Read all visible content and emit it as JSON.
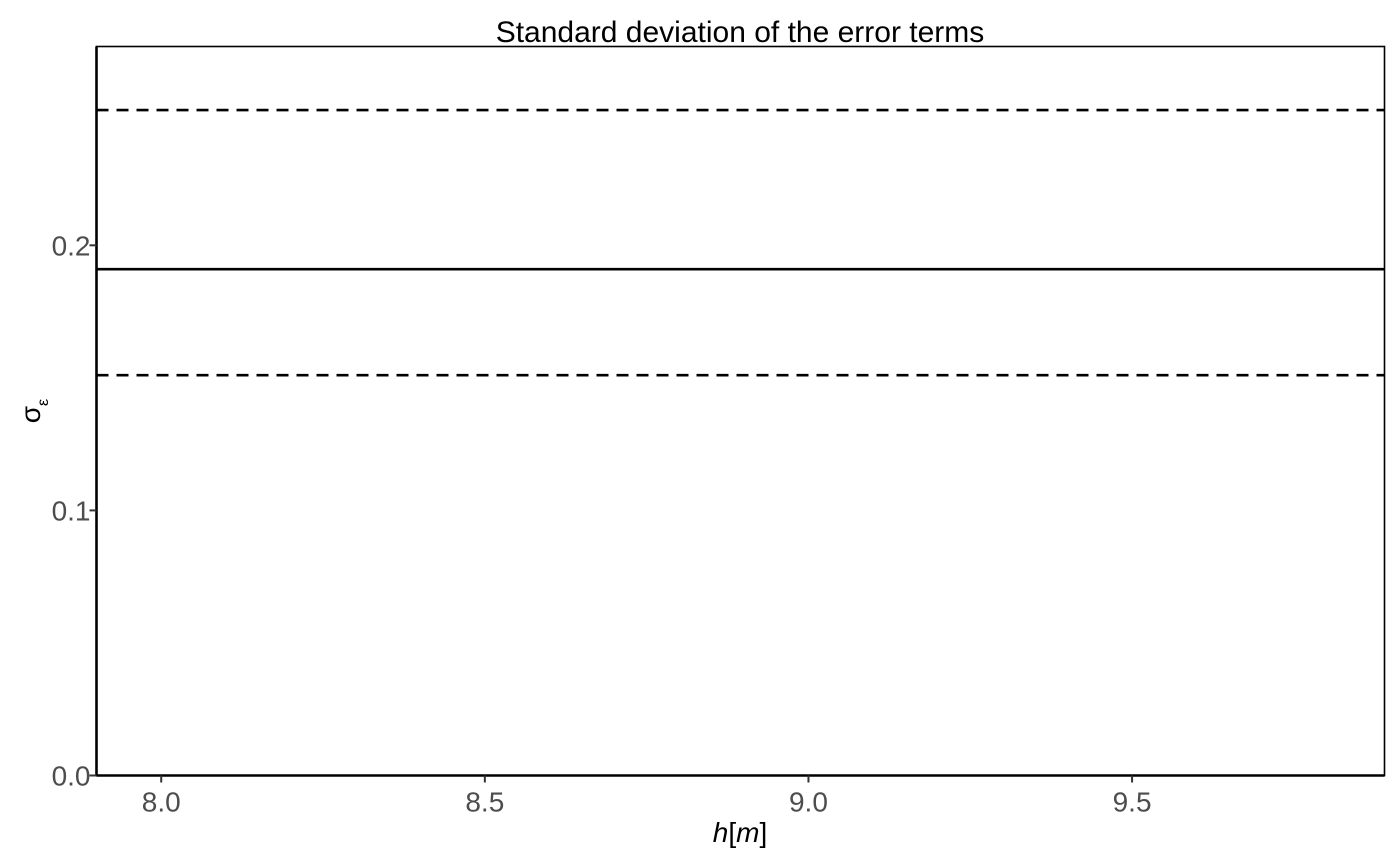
{
  "chart_data": {
    "type": "line",
    "title": "Standard deviation of the error terms",
    "xlabel": {
      "var": "h",
      "unit": "m"
    },
    "ylabel": {
      "symbol": "σ",
      "subscript": "ε"
    },
    "xlim": [
      7.9,
      9.89
    ],
    "ylim": [
      0.0,
      0.275
    ],
    "x_ticks": [
      8.0,
      8.5,
      9.0,
      9.5
    ],
    "x_tick_labels": [
      "8.0",
      "8.5",
      "9.0",
      "9.5"
    ],
    "y_ticks": [
      0.0,
      0.1,
      0.2
    ],
    "y_tick_labels": [
      "0.0",
      "0.1",
      "0.2"
    ],
    "grid": false,
    "series": [
      {
        "style": "dashed",
        "x": [
          7.9,
          9.89
        ],
        "values": [
          0.251,
          0.251
        ]
      },
      {
        "style": "solid",
        "x": [
          7.9,
          9.89
        ],
        "values": [
          0.191,
          0.191
        ]
      },
      {
        "style": "dashed",
        "x": [
          7.9,
          9.89
        ],
        "values": [
          0.151,
          0.151
        ]
      }
    ],
    "colors": {
      "line": "#000000",
      "tick_label": "#4d4d4d"
    }
  }
}
